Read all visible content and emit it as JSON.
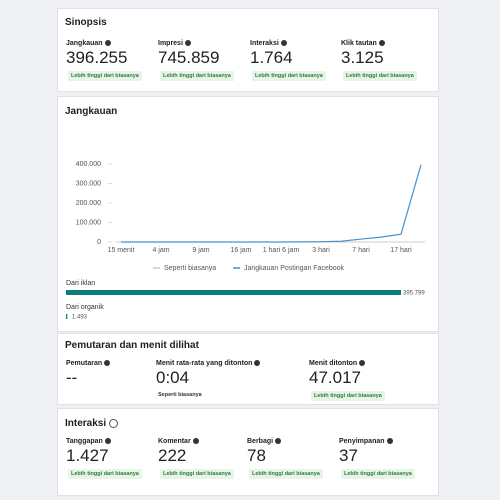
{
  "synopsis": {
    "title": "Sinopsis",
    "metrics": [
      {
        "label": "Jangkauan",
        "value": "396.255",
        "badge": "Lebih tinggi dari biasanya"
      },
      {
        "label": "Impresi",
        "value": "745.859",
        "badge": "Lebih tinggi dari biasanya"
      },
      {
        "label": "Interaksi",
        "value": "1.764",
        "badge": "Lebih tinggi dari biasanya"
      },
      {
        "label": "Klik tautan",
        "value": "3.125",
        "badge": "Lebih tinggi dari biasanya"
      }
    ]
  },
  "reach": {
    "title": "Jangkauan"
  },
  "chart_data": [
    {
      "type": "line",
      "categories": [
        "15 menit",
        null,
        "4 jam",
        null,
        "9 jam",
        null,
        "16 jam",
        null,
        "1 hari 6 jam",
        null,
        "3 hari",
        null,
        "7 hari",
        null,
        "17 hari",
        null
      ],
      "series": [
        {
          "name": "Seperti biasanya",
          "color": "#c8ccd1",
          "values": [
            null,
            null,
            null,
            null,
            null,
            null,
            null,
            null,
            null,
            null,
            null,
            null,
            null,
            null,
            null,
            null
          ]
        },
        {
          "name": "Jangkauan Postingan Facebook",
          "color": "#4a90c8",
          "values": [
            0,
            0,
            0,
            0,
            0,
            0,
            0,
            0,
            0,
            500,
            1500,
            4000,
            15000,
            25000,
            40000,
            396255
          ]
        }
      ],
      "ylim": [
        0,
        400000
      ],
      "yticks": [
        0,
        {
          "value": 100000,
          "label": "100.000"
        },
        {
          "value": 200000,
          "label": "200.000"
        },
        {
          "value": 300000,
          "label": "300.000"
        },
        {
          "value": 400000,
          "label": "400.000"
        }
      ],
      "grid": false
    },
    {
      "type": "hbar",
      "categories": [
        "Dari iklan",
        "Dari organik"
      ],
      "values": [
        395799,
        1493
      ],
      "value_labels": [
        "395.799",
        "1.493"
      ],
      "color": "#0e7c7b"
    }
  ],
  "playback": {
    "title": "Pemutaran dan menit dilihat",
    "metrics": [
      {
        "label": "Pemutaran",
        "value": "--"
      },
      {
        "label": "Menit rata-rata yang ditonton",
        "value": "0:04",
        "note": "Seperti biasanya"
      },
      {
        "label": "Menit ditonton",
        "value": "47.017",
        "badge": "Lebih tinggi dari biasanya"
      }
    ]
  },
  "interactions": {
    "title": "Interaksi",
    "metrics": [
      {
        "label": "Tanggapan",
        "value": "1.427",
        "badge": "Lebih tinggi dari biasanya"
      },
      {
        "label": "Komentar",
        "value": "222",
        "badge": "Lebih tinggi dari biasanya"
      },
      {
        "label": "Berbagi",
        "value": "78",
        "badge": "Lebih tinggi dari biasanya"
      },
      {
        "label": "Penyimpanan",
        "value": "37",
        "badge": "Lebih tinggi dari biasanya"
      }
    ]
  }
}
